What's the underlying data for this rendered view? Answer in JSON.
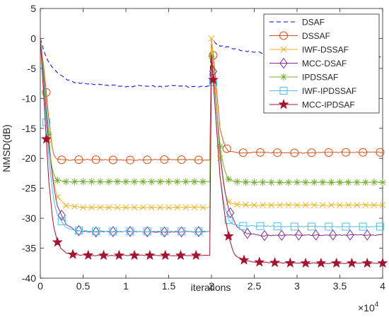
{
  "chart_data": {
    "type": "line",
    "xlabel": "iterations",
    "ylabel": "NMSD(dB)",
    "x_multiplier_label": "×10",
    "x_multiplier_exp": "4",
    "xlim": [
      0,
      4
    ],
    "ylim": [
      -40,
      5
    ],
    "x_ticks": [
      0,
      0.5,
      1,
      1.5,
      2,
      2.5,
      3,
      3.5,
      4
    ],
    "x_tick_labels": [
      "0",
      "0.5",
      "1",
      "1.5",
      "2",
      "2.5",
      "3",
      "3.5",
      "4"
    ],
    "y_ticks": [
      5,
      0,
      -5,
      -10,
      -15,
      -20,
      -25,
      -30,
      -35,
      -40
    ],
    "y_tick_labels": [
      "5",
      "0",
      "-5",
      "-10",
      "-15",
      "-20",
      "-25",
      "-30",
      "-35",
      "-40"
    ],
    "grid": false,
    "legend_position": "top-right",
    "series": [
      {
        "name": "DSAF",
        "color": "#0000ff",
        "marker": "none",
        "dash": "dashed",
        "x": [
          0,
          0.05,
          0.1,
          0.2,
          0.3,
          0.4,
          0.6,
          0.8,
          1.0,
          1.2,
          1.4,
          1.6,
          1.8,
          1.99,
          2.0,
          2.05,
          2.1,
          2.3,
          2.5,
          2.7,
          3.0,
          3.3,
          3.6,
          3.8,
          4.0
        ],
        "y": [
          0,
          -2.5,
          -4,
          -5.8,
          -6.8,
          -7.3,
          -7.6,
          -7.8,
          -8.0,
          -7.9,
          -8.0,
          -7.9,
          -8.1,
          -7.9,
          0,
          -0.8,
          -1.2,
          -1.8,
          -2.3,
          -2.6,
          -2.9,
          -3.0,
          -3.1,
          -3.0,
          -3.0
        ]
      },
      {
        "name": "DSSAF",
        "color": "#d95319",
        "marker": "circle",
        "dash": "solid",
        "x": [
          0,
          0.05,
          0.08,
          0.1,
          0.13,
          0.16,
          0.2,
          0.3,
          0.5,
          1.0,
          1.5,
          1.99,
          2.0,
          2.05,
          2.1,
          2.15,
          2.2,
          2.3,
          2.5,
          3.0,
          3.5,
          4.0
        ],
        "y": [
          0,
          -6,
          -10.5,
          -13.5,
          -17.5,
          -19.5,
          -20.2,
          -20.3,
          -20.2,
          -20.3,
          -20.2,
          -20.3,
          0,
          -7,
          -15,
          -17.8,
          -18.8,
          -19.1,
          -19.0,
          -19.1,
          -19.0,
          -19.0
        ],
        "marker_x": [
          0.07,
          0.25,
          0.45,
          0.65,
          0.85,
          1.05,
          1.25,
          1.45,
          1.65,
          1.85,
          2.02,
          2.18,
          2.37,
          2.57,
          2.77,
          2.97,
          3.17,
          3.37,
          3.57,
          3.77,
          3.97
        ]
      },
      {
        "name": "IWF-DSSAF",
        "color": "#edb120",
        "marker": "x",
        "dash": "solid",
        "x": [
          0,
          0.05,
          0.1,
          0.15,
          0.2,
          0.3,
          0.5,
          1.0,
          1.5,
          1.99,
          2.0,
          2.05,
          2.1,
          2.15,
          2.2,
          2.3,
          2.5,
          3.0,
          3.5,
          4.0
        ],
        "y": [
          0,
          -9,
          -17,
          -23.5,
          -26.5,
          -27.9,
          -28.2,
          -28.2,
          -28.2,
          -28.2,
          0,
          -9,
          -20,
          -25.5,
          -27.3,
          -27.7,
          -27.8,
          -27.8,
          -27.8,
          -27.8
        ]
      },
      {
        "name": "MCC-DSAF",
        "color": "#7e2f8e",
        "marker": "diamond",
        "dash": "solid",
        "x": [
          0,
          0.05,
          0.1,
          0.15,
          0.2,
          0.3,
          0.4,
          0.6,
          1.0,
          1.5,
          1.99,
          2.0,
          2.05,
          2.1,
          2.15,
          2.2,
          2.3,
          2.4,
          2.6,
          3.0,
          3.5,
          4.0
        ],
        "y": [
          0,
          -9,
          -18,
          -24,
          -28,
          -31,
          -32,
          -32.3,
          -32.2,
          -32.3,
          -32.2,
          -2.5,
          -10,
          -19,
          -25,
          -28.5,
          -31.5,
          -32.5,
          -32.9,
          -32.8,
          -32.8,
          -32.8
        ],
        "marker_x": [
          0.25,
          0.45,
          0.65,
          0.85,
          1.05,
          1.25,
          1.45,
          1.65,
          1.85,
          2.02,
          2.22,
          2.42,
          2.62,
          2.82,
          3.02,
          3.22,
          3.42,
          3.62,
          3.82
        ]
      },
      {
        "name": "IPDSSAF",
        "color": "#77ac30",
        "marker": "asterisk",
        "dash": "solid",
        "x": [
          0,
          0.05,
          0.08,
          0.1,
          0.12,
          0.15,
          0.2,
          0.3,
          0.5,
          1.0,
          1.5,
          1.99,
          2.0,
          2.05,
          2.1,
          2.15,
          2.2,
          2.3,
          2.5,
          3.0,
          3.5,
          4.0
        ],
        "y": [
          0,
          -7,
          -12.5,
          -16,
          -20,
          -22.5,
          -23.7,
          -23.9,
          -23.9,
          -23.9,
          -23.9,
          -23.9,
          -3,
          -10,
          -18,
          -22,
          -23.5,
          -23.9,
          -24.0,
          -24.0,
          -24.0,
          -24.0
        ]
      },
      {
        "name": "IWF-IPDSSAF",
        "color": "#4dbeee",
        "marker": "square",
        "dash": "solid",
        "x": [
          0,
          0.05,
          0.1,
          0.15,
          0.2,
          0.3,
          0.4,
          0.6,
          1.0,
          1.5,
          1.99,
          2.0,
          2.05,
          2.1,
          2.15,
          2.2,
          2.25,
          2.35,
          2.5,
          3.0,
          3.5,
          4.0
        ],
        "y": [
          0,
          -10,
          -20,
          -26.5,
          -29.5,
          -31.5,
          -32.0,
          -32.2,
          -32.2,
          -32.2,
          -32.2,
          -3.5,
          -13,
          -23,
          -28,
          -30.3,
          -31.0,
          -31.3,
          -31.3,
          -31.4,
          -31.4,
          -31.4
        ],
        "marker_x": [
          0.07,
          0.25,
          0.45,
          0.65,
          0.85,
          1.05,
          1.25,
          1.45,
          1.65,
          1.85,
          2.02,
          2.2,
          2.37,
          2.57,
          2.77,
          2.97,
          3.17,
          3.37,
          3.57,
          3.77,
          3.97
        ]
      },
      {
        "name": "MCC-IPDSAF",
        "color": "#a2142f",
        "marker": "pentagram",
        "dash": "solid",
        "x": [
          0,
          0.05,
          0.1,
          0.15,
          0.2,
          0.25,
          0.3,
          0.4,
          0.6,
          1.0,
          1.5,
          1.99,
          2.0,
          2.05,
          2.1,
          2.15,
          2.2,
          2.25,
          2.3,
          2.4,
          2.5,
          2.7,
          3.0,
          3.5,
          4.0
        ],
        "y": [
          0,
          -12,
          -24,
          -31,
          -34,
          -35.2,
          -35.8,
          -36.1,
          -36.2,
          -36.2,
          -36.2,
          -36.2,
          -2.8,
          -13,
          -23,
          -29,
          -33,
          -35.5,
          -36.5,
          -37.1,
          -37.3,
          -37.4,
          -37.5,
          -37.5,
          -37.5
        ],
        "marker_x": [
          0.07,
          0.2,
          0.38,
          0.56,
          0.74,
          0.92,
          1.1,
          1.28,
          1.46,
          1.64,
          1.82,
          2.02,
          2.2,
          2.38,
          2.56,
          2.74,
          2.92,
          3.1,
          3.28,
          3.46,
          3.64,
          3.82,
          4.0
        ]
      }
    ]
  }
}
